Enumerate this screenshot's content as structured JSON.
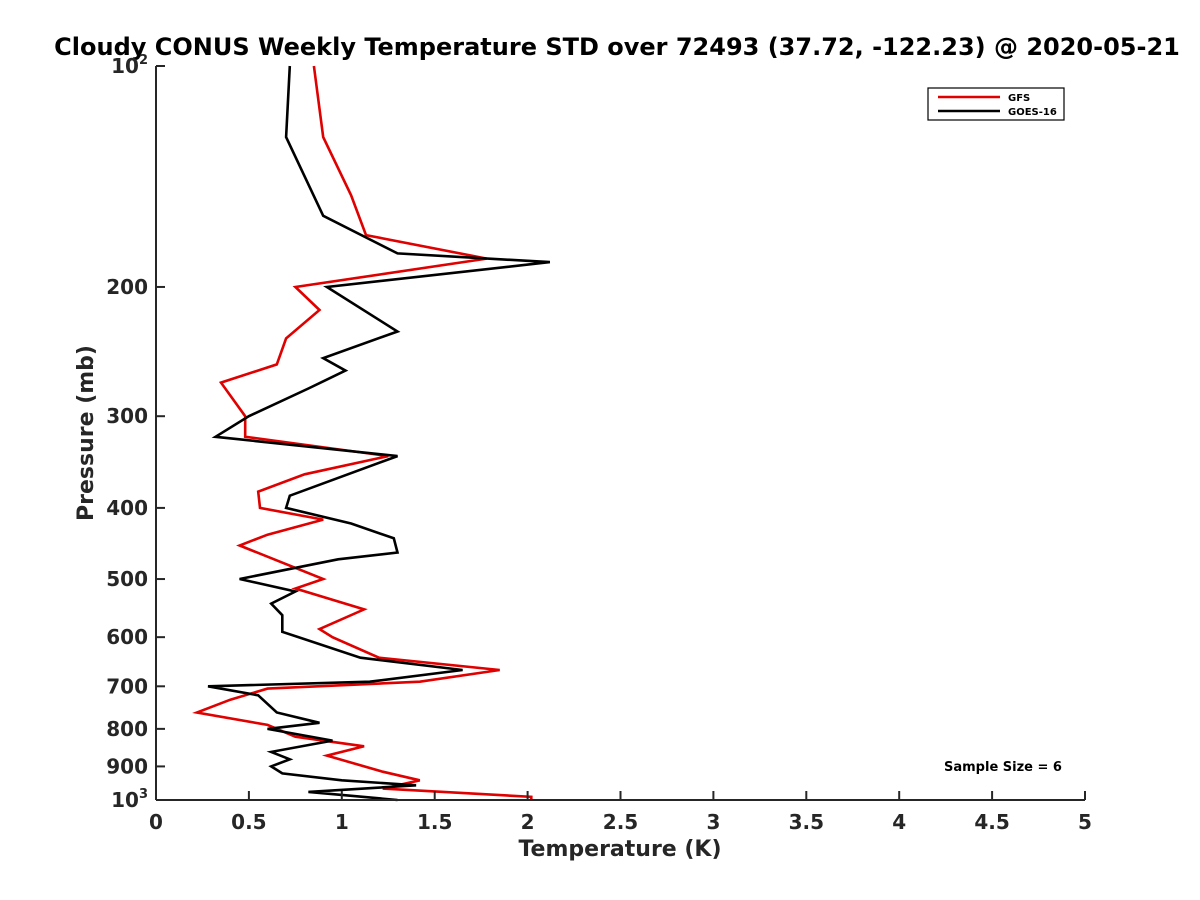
{
  "chart_data": {
    "type": "line",
    "title": "Cloudy CONUS Weekly Temperature STD over 72493 (37.72, -122.23) @ 2020-05-21",
    "xlabel": "Temperature (K)",
    "ylabel": "Pressure (mb)",
    "xlim": [
      0,
      5
    ],
    "ylim": [
      100,
      1000
    ],
    "y_scale": "log",
    "y_reversed": true,
    "grid": false,
    "legend_position": "top-right",
    "x_ticks": [
      "0",
      "0.5",
      "1",
      "1.5",
      "2",
      "2.5",
      "3",
      "3.5",
      "4",
      "4.5",
      "5"
    ],
    "y_ticks": [
      {
        "value": 100,
        "base": "10",
        "exp": "2"
      },
      {
        "value": 200,
        "label": "200"
      },
      {
        "value": 300,
        "label": "300"
      },
      {
        "value": 400,
        "label": "400"
      },
      {
        "value": 500,
        "label": "500"
      },
      {
        "value": 600,
        "label": "600"
      },
      {
        "value": 700,
        "label": "700"
      },
      {
        "value": 800,
        "label": "800"
      },
      {
        "value": 900,
        "label": "900"
      },
      {
        "value": 1000,
        "base": "10",
        "exp": "3"
      }
    ],
    "series": [
      {
        "name": "GFS",
        "color": "#e00000",
        "points": [
          [
            0.85,
            100
          ],
          [
            0.9,
            125
          ],
          [
            1.05,
            150
          ],
          [
            1.13,
            170
          ],
          [
            1.78,
            183
          ],
          [
            0.75,
            200
          ],
          [
            0.88,
            215
          ],
          [
            0.7,
            235
          ],
          [
            0.65,
            255
          ],
          [
            0.35,
            270
          ],
          [
            0.48,
            300
          ],
          [
            0.48,
            320
          ],
          [
            1.25,
            340
          ],
          [
            0.8,
            360
          ],
          [
            0.55,
            380
          ],
          [
            0.56,
            400
          ],
          [
            0.9,
            415
          ],
          [
            0.6,
            435
          ],
          [
            0.45,
            450
          ],
          [
            0.9,
            500
          ],
          [
            0.75,
            515
          ],
          [
            1.12,
            550
          ],
          [
            0.88,
            585
          ],
          [
            0.95,
            600
          ],
          [
            1.2,
            640
          ],
          [
            1.85,
            665
          ],
          [
            1.42,
            690
          ],
          [
            0.6,
            705
          ],
          [
            0.4,
            730
          ],
          [
            0.22,
            760
          ],
          [
            0.6,
            790
          ],
          [
            0.75,
            820
          ],
          [
            1.12,
            845
          ],
          [
            0.92,
            870
          ],
          [
            1.22,
            915
          ],
          [
            1.42,
            940
          ],
          [
            1.22,
            965
          ],
          [
            2.02,
            990
          ],
          [
            2.02,
            1000
          ]
        ]
      },
      {
        "name": "GOES-16",
        "color": "#000000",
        "points": [
          [
            0.72,
            100
          ],
          [
            0.7,
            125
          ],
          [
            0.9,
            160
          ],
          [
            1.3,
            180
          ],
          [
            2.12,
            185
          ],
          [
            0.92,
            200
          ],
          [
            1.3,
            230
          ],
          [
            0.9,
            250
          ],
          [
            1.02,
            260
          ],
          [
            0.82,
            275
          ],
          [
            0.5,
            300
          ],
          [
            0.32,
            320
          ],
          [
            1.3,
            340
          ],
          [
            0.72,
            385
          ],
          [
            0.7,
            400
          ],
          [
            1.05,
            420
          ],
          [
            1.28,
            440
          ],
          [
            1.3,
            460
          ],
          [
            0.98,
            470
          ],
          [
            0.45,
            500
          ],
          [
            0.75,
            520
          ],
          [
            0.62,
            540
          ],
          [
            0.68,
            560
          ],
          [
            0.68,
            590
          ],
          [
            1.1,
            640
          ],
          [
            1.65,
            665
          ],
          [
            1.15,
            690
          ],
          [
            0.28,
            700
          ],
          [
            0.55,
            720
          ],
          [
            0.65,
            760
          ],
          [
            0.88,
            785
          ],
          [
            0.6,
            800
          ],
          [
            0.95,
            830
          ],
          [
            0.62,
            860
          ],
          [
            0.72,
            880
          ],
          [
            0.62,
            900
          ],
          [
            0.68,
            920
          ],
          [
            1.0,
            940
          ],
          [
            1.4,
            955
          ],
          [
            0.82,
            975
          ],
          [
            1.3,
            1000
          ]
        ]
      }
    ],
    "annotation": "Sample Size = 6"
  }
}
